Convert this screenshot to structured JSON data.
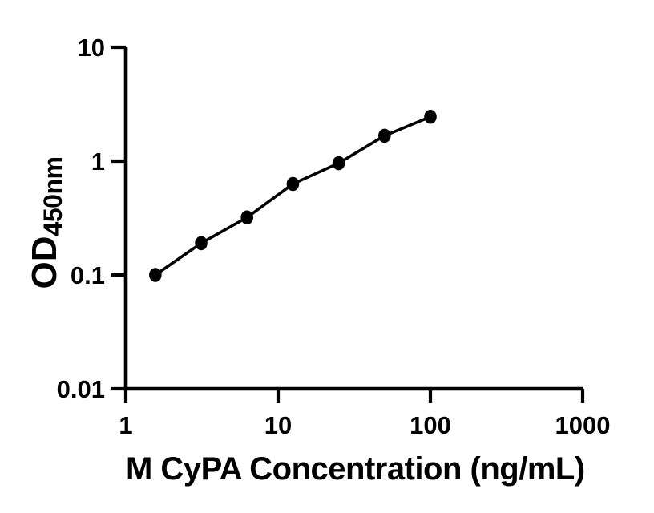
{
  "chart_data": {
    "type": "line",
    "title": "",
    "xlabel": "M CyPA Concentration (ng/mL)",
    "ylabel": "OD450nm",
    "ylabel_main": "OD",
    "ylabel_sub": "450nm",
    "x_scale": "log",
    "y_scale": "log",
    "xlim": [
      1,
      1000
    ],
    "ylim": [
      0.01,
      10
    ],
    "x_ticks": {
      "values": [
        1,
        10,
        100,
        1000
      ],
      "labels": [
        "1",
        "10",
        "100",
        "1000"
      ]
    },
    "y_ticks": {
      "values": [
        0.01,
        0.1,
        1,
        10
      ],
      "labels": [
        "0.01",
        "0.1",
        "1",
        "10"
      ]
    },
    "grid": false,
    "legend": false,
    "series": [
      {
        "x": [
          1.563,
          3.125,
          6.25,
          12.5,
          25,
          50,
          100
        ],
        "y": [
          0.1,
          0.19,
          0.32,
          0.63,
          0.96,
          1.67,
          2.45
        ],
        "marker": "filled-circle",
        "color": "#000000"
      }
    ],
    "axis_color": "#000000",
    "text_color": "#000000",
    "background": "#ffffff"
  }
}
